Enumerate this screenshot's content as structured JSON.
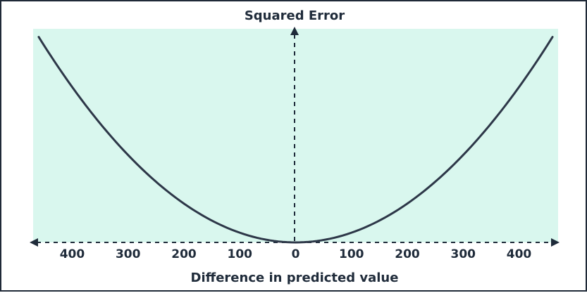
{
  "chart_data": {
    "type": "line",
    "title": "Squared Error",
    "xlabel": "Difference in predicted value",
    "ylabel": "",
    "x_tick_labels": [
      "400",
      "300",
      "200",
      "100",
      "0",
      "100",
      "200",
      "300",
      "400"
    ],
    "x_tick_values": [
      -400,
      -300,
      -200,
      -100,
      0,
      100,
      200,
      300,
      400
    ],
    "xlim": [
      -470,
      470
    ],
    "ylim": [
      0,
      220000
    ],
    "grid": false,
    "legend": "none",
    "series": [
      {
        "x": [
          -460,
          -400,
          -300,
          -200,
          -100,
          0,
          100,
          200,
          300,
          400,
          460
        ],
        "values": [
          211600,
          160000,
          90000,
          40000,
          10000,
          0,
          10000,
          40000,
          90000,
          160000,
          211600
        ]
      }
    ],
    "colors": {
      "background": "#d9f7ee",
      "curve": "#2d3748",
      "axis": "#1f2b3a",
      "frame": "#1f2937"
    }
  }
}
